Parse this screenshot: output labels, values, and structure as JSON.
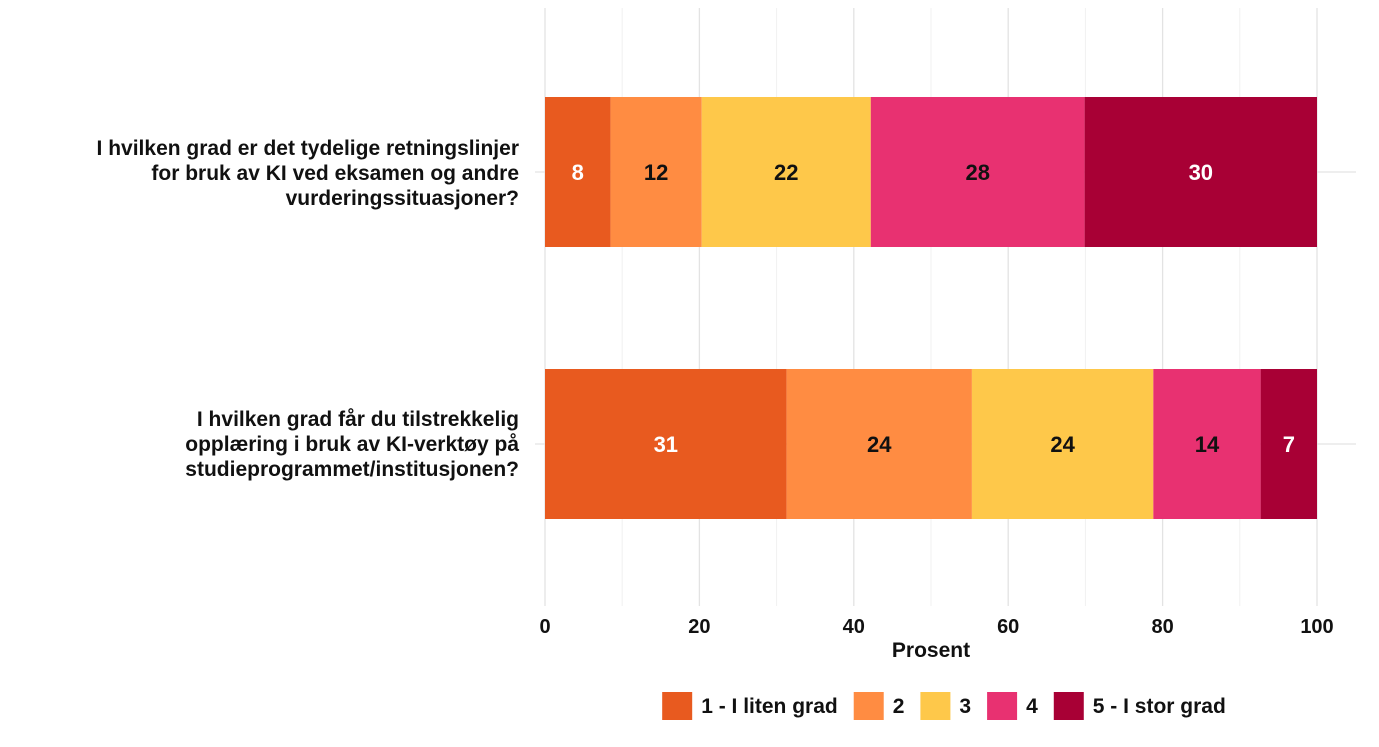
{
  "chart_data": {
    "type": "bar",
    "orientation": "horizontal",
    "stacked": true,
    "categories": [
      "I hvilken grad er det tydelige retningslinjer for bruk av KI ved eksamen og andre vurderingssituasjoner?",
      "I hvilken grad får du tilstrekkelig opplæring i bruk av KI-verktøy på studieprogrammet/institusjonen?"
    ],
    "category_lines": [
      [
        "I hvilken grad er det tydelige retningslinjer",
        "for bruk av KI ved eksamen og andre",
        "vurderingssituasjoner?"
      ],
      [
        "I hvilken grad får du tilstrekkelig",
        "opplæring i bruk av KI-verktøy på",
        "studieprogrammet/institusjonen?"
      ]
    ],
    "series": [
      {
        "name": "1 - I liten grad",
        "values": [
          8.5,
          31.3
        ],
        "labels": [
          "8",
          "31"
        ],
        "color": "#E85A1F",
        "label_color": "#ffffff"
      },
      {
        "name": "2",
        "values": [
          11.8,
          24.0
        ],
        "labels": [
          "12",
          "24"
        ],
        "color": "#FF8C42",
        "label_color": "#111111"
      },
      {
        "name": "3",
        "values": [
          21.9,
          23.5
        ],
        "labels": [
          "22",
          "24"
        ],
        "color": "#FEC84A",
        "label_color": "#111111"
      },
      {
        "name": "4",
        "values": [
          27.7,
          13.9
        ],
        "labels": [
          "28",
          "14"
        ],
        "color": "#E83171",
        "label_color": "#111111"
      },
      {
        "name": "5 - I stor grad",
        "values": [
          30.1,
          7.3
        ],
        "labels": [
          "30",
          "7"
        ],
        "color": "#A80035",
        "label_color": "#ffffff"
      }
    ],
    "xlabel": "Prosent",
    "ylabel": "",
    "xlim": [
      0,
      100
    ],
    "xticks": [
      0,
      20,
      40,
      60,
      80,
      100
    ],
    "grid": true,
    "legend_position": "bottom"
  }
}
